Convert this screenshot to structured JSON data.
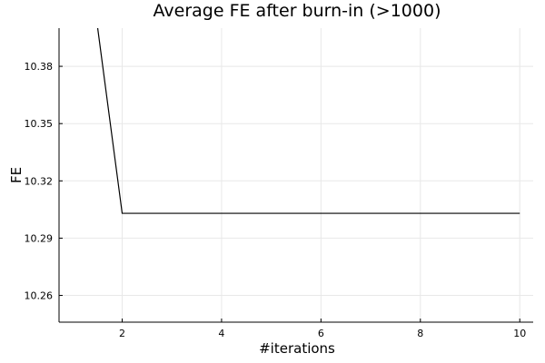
{
  "chart_data": {
    "type": "line",
    "title": "Average FE after burn-in (>1000)",
    "xlabel": "#iterations",
    "ylabel": "FE",
    "xlim": [
      0.73,
      10.27
    ],
    "ylim": [
      10.246,
      10.4
    ],
    "xticks": [
      2,
      4,
      6,
      8,
      10
    ],
    "yticks": [
      10.26,
      10.29,
      10.32,
      10.35,
      10.38
    ],
    "ytick_labels": [
      "10.26",
      "10.29",
      "10.32",
      "10.35",
      "10.38"
    ],
    "grid": true,
    "legend": false,
    "series": [
      {
        "color": "#000000",
        "x": [
          1,
          2,
          3,
          4,
          5,
          6,
          7,
          8,
          9,
          10
        ],
        "y": [
          10.5,
          10.303,
          10.303,
          10.303,
          10.303,
          10.303,
          10.303,
          10.303,
          10.303,
          10.303
        ]
      }
    ]
  }
}
